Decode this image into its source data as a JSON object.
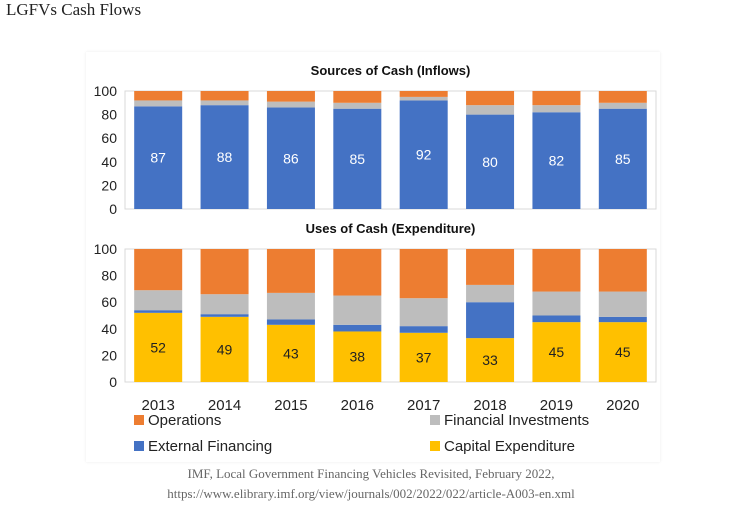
{
  "page": {
    "title": "LGFVs Cash Flows",
    "source_line1": "IMF, Local Government Financing Vehicles Revisited, February 2022,",
    "source_line2": "https://www.elibrary.imf.org/view/journals/002/2022/022/article-A003-en.xml"
  },
  "colors": {
    "operations": "#ED7D31",
    "financial_investments": "#BDBDBD",
    "external_financing": "#4472C4",
    "capital_expenditure": "#FFC000"
  },
  "chart_data": [
    {
      "type": "bar",
      "stacked": true,
      "title": "Sources of Cash (Inflows)",
      "categories": [
        "2013",
        "2014",
        "2015",
        "2016",
        "2017",
        "2018",
        "2019",
        "2020"
      ],
      "ylim": [
        0,
        100
      ],
      "yticks": [
        0,
        20,
        40,
        60,
        80,
        100
      ],
      "grid": false,
      "data_label_series": "External Financing",
      "series": [
        {
          "name": "External Financing",
          "color": "#4472C4",
          "values": [
            87,
            88,
            86,
            85,
            92,
            80,
            82,
            85
          ]
        },
        {
          "name": "Financial Investments",
          "color": "#BDBDBD",
          "values": [
            5,
            4,
            5,
            5,
            3,
            8,
            6,
            5
          ]
        },
        {
          "name": "Operations",
          "color": "#ED7D31",
          "values": [
            8,
            8,
            9,
            10,
            5,
            12,
            12,
            10
          ]
        }
      ]
    },
    {
      "type": "bar",
      "stacked": true,
      "title": "Uses of Cash (Expenditure)",
      "categories": [
        "2013",
        "2014",
        "2015",
        "2016",
        "2017",
        "2018",
        "2019",
        "2020"
      ],
      "ylim": [
        0,
        100
      ],
      "yticks": [
        0,
        20,
        40,
        60,
        80,
        100
      ],
      "grid": false,
      "data_label_series": "Capital Expenditure",
      "series": [
        {
          "name": "Capital Expenditure",
          "color": "#FFC000",
          "values": [
            52,
            49,
            43,
            38,
            37,
            33,
            45,
            45
          ]
        },
        {
          "name": "External Financing",
          "color": "#4472C4",
          "values": [
            2,
            2,
            4,
            5,
            5,
            27,
            5,
            4
          ]
        },
        {
          "name": "Financial Investments",
          "color": "#BDBDBD",
          "values": [
            15,
            15,
            20,
            22,
            21,
            13,
            18,
            19
          ]
        },
        {
          "name": "Operations",
          "color": "#ED7D31",
          "values": [
            31,
            34,
            33,
            35,
            37,
            27,
            32,
            32
          ]
        }
      ]
    }
  ],
  "legend": {
    "placement": "bottom",
    "items": [
      {
        "label": "Operations",
        "color": "#ED7D31"
      },
      {
        "label": "Financial Investments",
        "color": "#BDBDBD"
      },
      {
        "label": "External Financing",
        "color": "#4472C4"
      },
      {
        "label": "Capital Expenditure",
        "color": "#FFC000"
      }
    ]
  }
}
